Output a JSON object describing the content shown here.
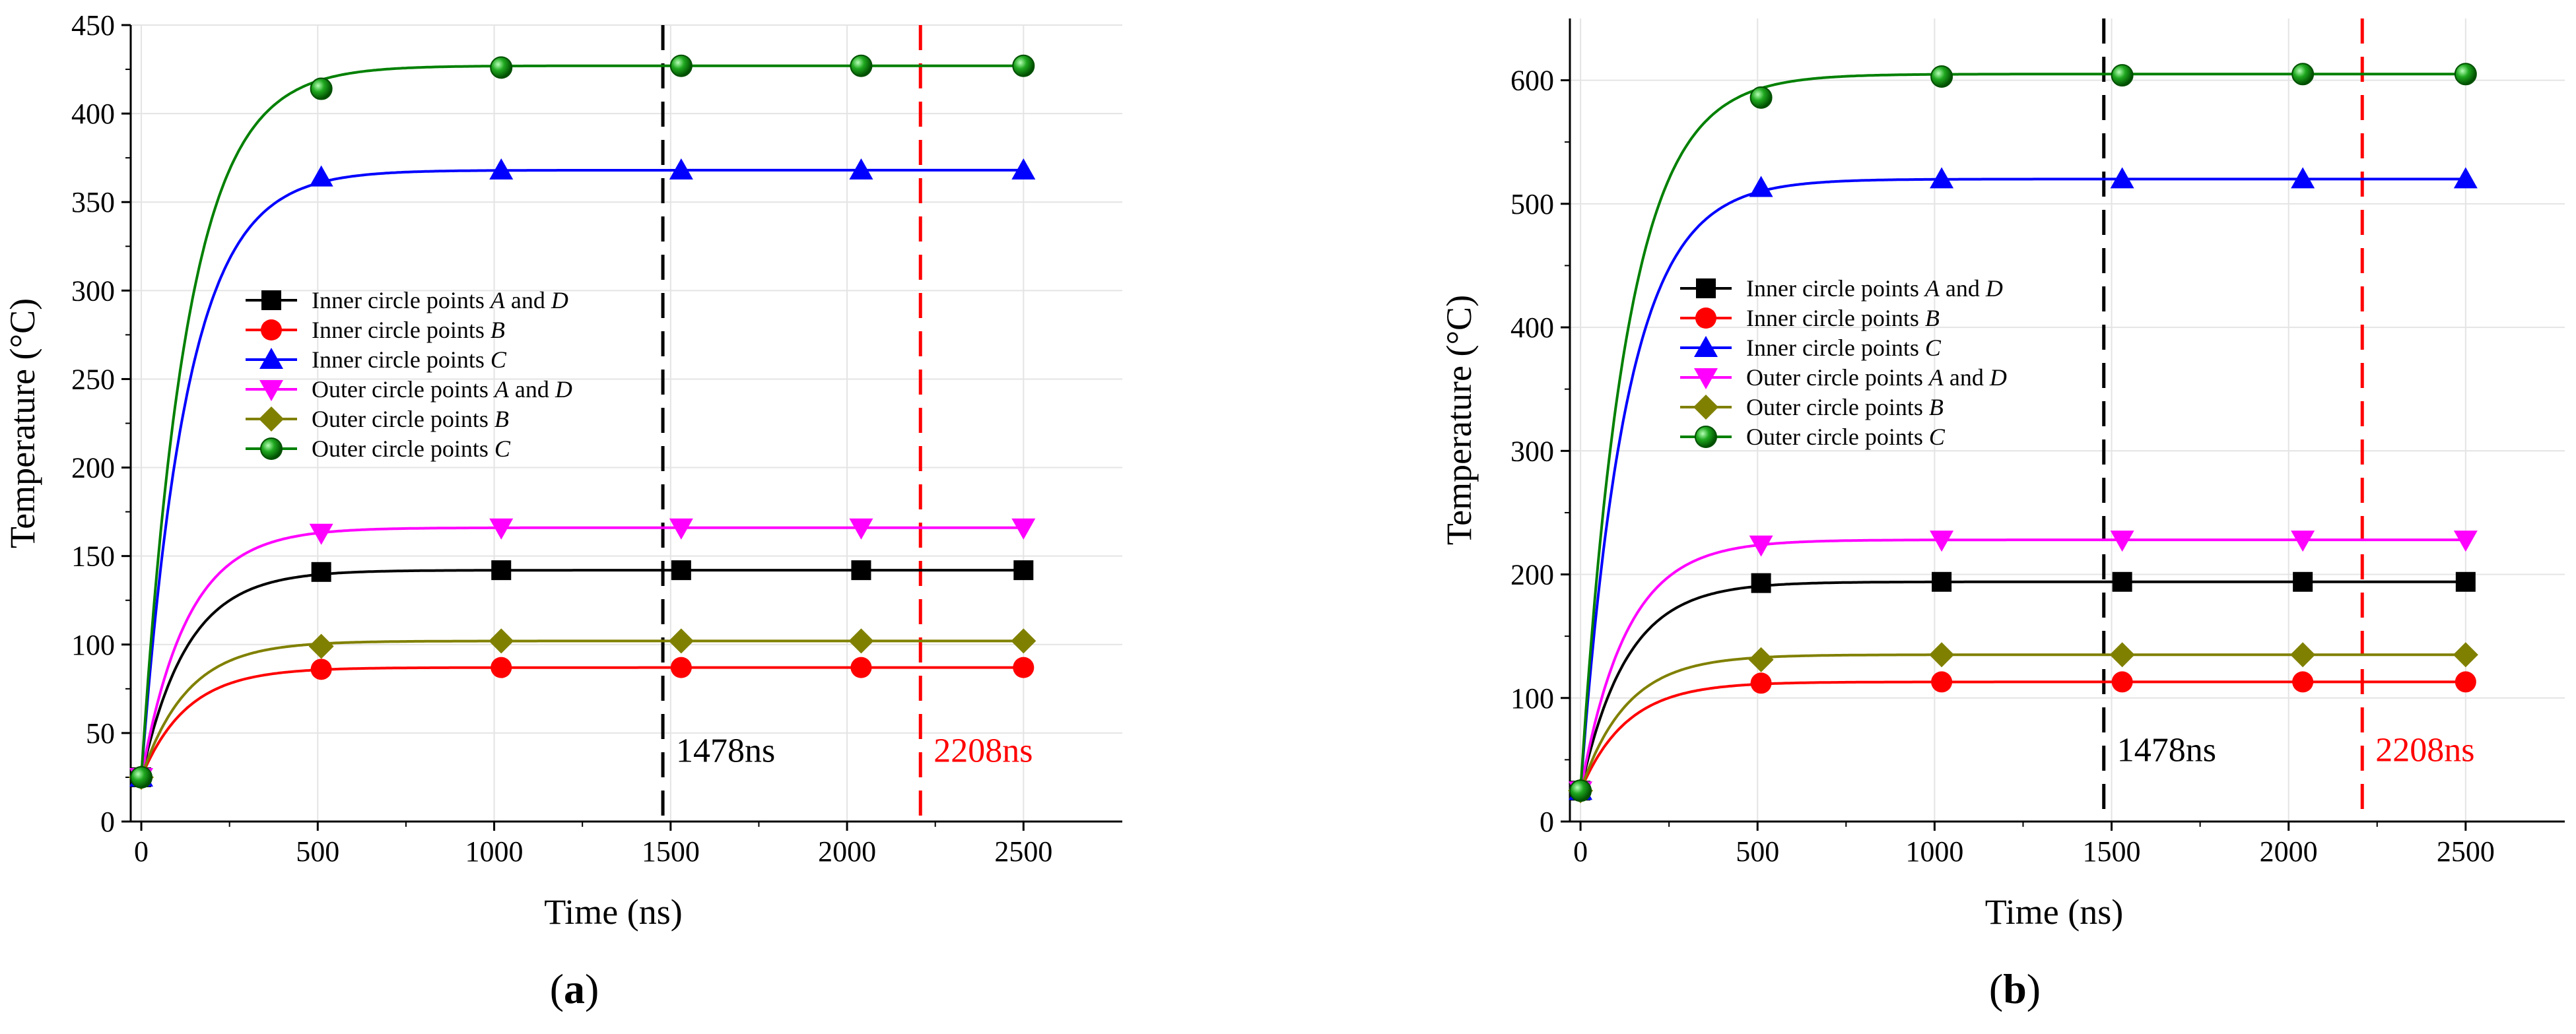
{
  "chart_data": [
    {
      "type": "line",
      "panel_label": "a",
      "xlabel": "Time (ns)",
      "ylabel": "Temperature (°C)",
      "xlim": [
        -30,
        2780
      ],
      "ylim": [
        0,
        450
      ],
      "xticks": [
        0,
        500,
        1000,
        1500,
        2000,
        2500
      ],
      "yticks": [
        0,
        50,
        100,
        150,
        200,
        250,
        300,
        350,
        400,
        450
      ],
      "grid": true,
      "legend_position": "upper-left",
      "time_constant": 130,
      "start_value": 25,
      "marker_x": [
        0,
        510,
        1020,
        1530,
        2040,
        2500
      ],
      "series": [
        {
          "name": "Inner circle points A and D",
          "prefix": "Inner circle points ",
          "italic1": "A",
          "mid": " and ",
          "italic2": "D",
          "color": "#000000",
          "marker": "square",
          "final": 142,
          "values": [
            25,
            141,
            142,
            142,
            142,
            142
          ]
        },
        {
          "name": "Inner circle points B",
          "prefix": "Inner circle points ",
          "italic1": "B",
          "mid": "",
          "italic2": "",
          "color": "#ff0000",
          "marker": "circle",
          "final": 87,
          "values": [
            25,
            86,
            87,
            87,
            87,
            87
          ]
        },
        {
          "name": "Inner circle points C",
          "prefix": "Inner circle points ",
          "italic1": "C",
          "mid": "",
          "italic2": "",
          "color": "#0000ff",
          "marker": "triangle-up",
          "final": 368,
          "values": [
            25,
            364,
            368,
            368,
            368,
            368
          ]
        },
        {
          "name": "Outer circle points A and D",
          "prefix": "Outer circle points ",
          "italic1": "A",
          "mid": " and ",
          "italic2": "D",
          "color": "#ff00ff",
          "marker": "triangle-down",
          "final": 166,
          "values": [
            25,
            163,
            166,
            166,
            166,
            166
          ]
        },
        {
          "name": "Outer circle points B",
          "prefix": "Outer circle points ",
          "italic1": "B",
          "mid": "",
          "italic2": "",
          "color": "#808000",
          "marker": "diamond",
          "final": 102,
          "values": [
            25,
            99,
            102,
            102,
            102,
            102
          ]
        },
        {
          "name": "Outer circle points C",
          "prefix": "Outer circle points ",
          "italic1": "C",
          "mid": "",
          "italic2": "",
          "color": "#008000",
          "marker": "ball",
          "final": 427,
          "values": [
            25,
            414,
            426,
            427,
            427,
            427
          ]
        }
      ],
      "vlines": [
        {
          "x": 1478,
          "label": "1478ns",
          "color": "#000000"
        },
        {
          "x": 2208,
          "label": "2208ns",
          "color": "#ff0000"
        }
      ]
    },
    {
      "type": "line",
      "panel_label": "b",
      "xlabel": "Time (ns)",
      "ylabel": "Temperature (°C)",
      "xlim": [
        -30,
        2780
      ],
      "ylim": [
        0,
        650
      ],
      "xticks": [
        0,
        500,
        1000,
        1500,
        2000,
        2500
      ],
      "yticks": [
        0,
        100,
        200,
        300,
        400,
        500,
        600
      ],
      "grid": true,
      "legend_position": "upper-left",
      "time_constant": 130,
      "start_value": 25,
      "marker_x": [
        0,
        510,
        1020,
        1530,
        2040,
        2500
      ],
      "series": [
        {
          "name": "Inner circle points A and D",
          "prefix": "Inner circle points ",
          "italic1": "A",
          "mid": " and ",
          "italic2": "D",
          "color": "#000000",
          "marker": "square",
          "final": 194,
          "values": [
            25,
            193,
            194,
            194,
            194,
            194
          ]
        },
        {
          "name": "Inner circle points B",
          "prefix": "Inner circle points ",
          "italic1": "B",
          "mid": "",
          "italic2": "",
          "color": "#ff0000",
          "marker": "circle",
          "final": 113,
          "values": [
            25,
            112,
            113,
            113,
            113,
            113
          ]
        },
        {
          "name": "Inner circle points C",
          "prefix": "Inner circle points ",
          "italic1": "C",
          "mid": "",
          "italic2": "",
          "color": "#0000ff",
          "marker": "triangle-up",
          "final": 520,
          "values": [
            25,
            513,
            520,
            520,
            520,
            520
          ]
        },
        {
          "name": "Outer circle points A and D",
          "prefix": "Outer circle points ",
          "italic1": "A",
          "mid": " and ",
          "italic2": "D",
          "color": "#ff00ff",
          "marker": "triangle-down",
          "final": 228,
          "values": [
            25,
            224,
            228,
            228,
            228,
            228
          ]
        },
        {
          "name": "Outer circle points B",
          "prefix": "Outer circle points ",
          "italic1": "B",
          "mid": "",
          "italic2": "",
          "color": "#808000",
          "marker": "diamond",
          "final": 135,
          "values": [
            25,
            131,
            135,
            135,
            135,
            135
          ]
        },
        {
          "name": "Outer circle points C",
          "prefix": "Outer circle points ",
          "italic1": "C",
          "mid": "",
          "italic2": "",
          "color": "#008000",
          "marker": "ball",
          "final": 605,
          "values": [
            25,
            586,
            603,
            604,
            605,
            605
          ]
        }
      ],
      "vlines": [
        {
          "x": 1478,
          "label": "1478ns",
          "color": "#000000"
        },
        {
          "x": 2208,
          "label": "2208ns",
          "color": "#ff0000"
        }
      ]
    }
  ]
}
